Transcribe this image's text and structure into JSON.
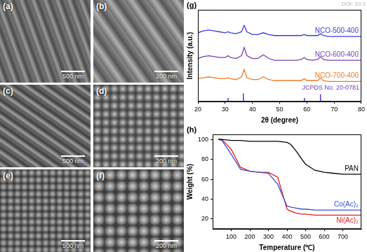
{
  "images": [
    {
      "label": "(a)",
      "scale_bar": "500 nm"
    },
    {
      "label": "(b)",
      "scale_bar": "200 nm"
    },
    {
      "label": "(c)",
      "scale_bar": "500 nm"
    },
    {
      "label": "(d)",
      "scale_bar": "200 nm"
    },
    {
      "label": "(e)",
      "scale_bar": "500 nm"
    },
    {
      "label": "(f)",
      "scale_bar": "200 nm"
    }
  ],
  "chart_data": [
    {
      "type": "line",
      "panel": "(g)",
      "watermark": "DOI: 10.1",
      "x_label": "2θ (degree)",
      "y_label": "Intensity (a.u.)",
      "x": [
        20,
        22,
        24,
        26,
        28,
        30,
        31,
        32,
        34,
        36,
        37,
        38,
        40,
        42,
        44,
        46,
        48,
        50,
        52,
        54,
        56,
        58,
        59,
        60,
        62,
        64,
        65,
        66,
        68,
        70,
        72,
        74,
        76,
        78,
        80
      ],
      "xlim": [
        20,
        80
      ],
      "xticks": [
        20,
        30,
        40,
        50,
        60,
        70,
        80
      ],
      "ylim": [
        0,
        100
      ],
      "tick_labels": "x",
      "grid": false,
      "series": [
        {
          "name": "NCO-500-400",
          "color": "#3c3cd6",
          "values": [
            75,
            77,
            78,
            77,
            76,
            75,
            76,
            75,
            74,
            76,
            83,
            76,
            73,
            73,
            75,
            73,
            72,
            72,
            72,
            72,
            72,
            72,
            73,
            72,
            72,
            72,
            74,
            72,
            71,
            71,
            71,
            71,
            71,
            71,
            71
          ]
        },
        {
          "name": "NCO-600-400",
          "color": "#7a3fb0",
          "values": [
            47,
            49,
            50,
            49,
            48,
            48,
            50,
            48,
            47,
            50,
            59,
            50,
            47,
            47,
            51,
            47,
            45,
            45,
            45,
            45,
            45,
            46,
            48,
            46,
            45,
            46,
            49,
            46,
            45,
            45,
            45,
            45,
            45,
            45,
            45
          ]
        },
        {
          "name": "NCO-700-400",
          "color": "#f07a28",
          "values": [
            25,
            26,
            27,
            26,
            25,
            25,
            26,
            25,
            24,
            27,
            35,
            26,
            24,
            24,
            27,
            24,
            23,
            23,
            23,
            23,
            23,
            23,
            25,
            23,
            23,
            23,
            26,
            23,
            22,
            22,
            22,
            22,
            22,
            22,
            22
          ]
        },
        {
          "name": "JCPDS No. 20-0781",
          "color": "#6a3fc0",
          "type": "stem",
          "x": [
            31.1,
            36.7,
            59.1,
            65.0
          ],
          "values": [
            4,
            9,
            4,
            8
          ]
        }
      ]
    },
    {
      "type": "line",
      "panel": "(h)",
      "x_label": "Temperature (℃)",
      "y_label": "Weight (%)",
      "x": [
        30,
        50,
        100,
        150,
        200,
        250,
        300,
        350,
        400,
        420,
        450,
        480,
        500,
        550,
        600,
        650,
        700,
        750,
        800
      ],
      "xlim": [
        0,
        800
      ],
      "xticks": [
        100,
        200,
        300,
        400,
        500,
        600,
        700
      ],
      "ylim": [
        10,
        105
      ],
      "yticks": [
        20,
        40,
        60,
        80,
        100
      ],
      "grid": false,
      "series": [
        {
          "name": "PAN",
          "color": "#000000",
          "values": [
            100,
            100,
            99,
            99,
            98,
            98,
            98,
            98,
            97,
            95,
            88,
            80,
            75,
            69,
            67,
            66,
            65,
            65,
            65
          ]
        },
        {
          "name": "Co(Ac)₂",
          "color": "#3a4fd8",
          "values": [
            100,
            99,
            85,
            70,
            68,
            67,
            66,
            55,
            33,
            32,
            31,
            30,
            30,
            29,
            29,
            29,
            29,
            29,
            29
          ]
        },
        {
          "name": "Ni(Ac)₂",
          "color": "#e02020",
          "values": [
            100,
            100,
            90,
            72,
            68,
            67,
            67,
            62,
            30,
            28,
            26,
            25,
            25,
            24,
            24,
            24,
            24,
            24,
            24
          ]
        }
      ]
    }
  ]
}
